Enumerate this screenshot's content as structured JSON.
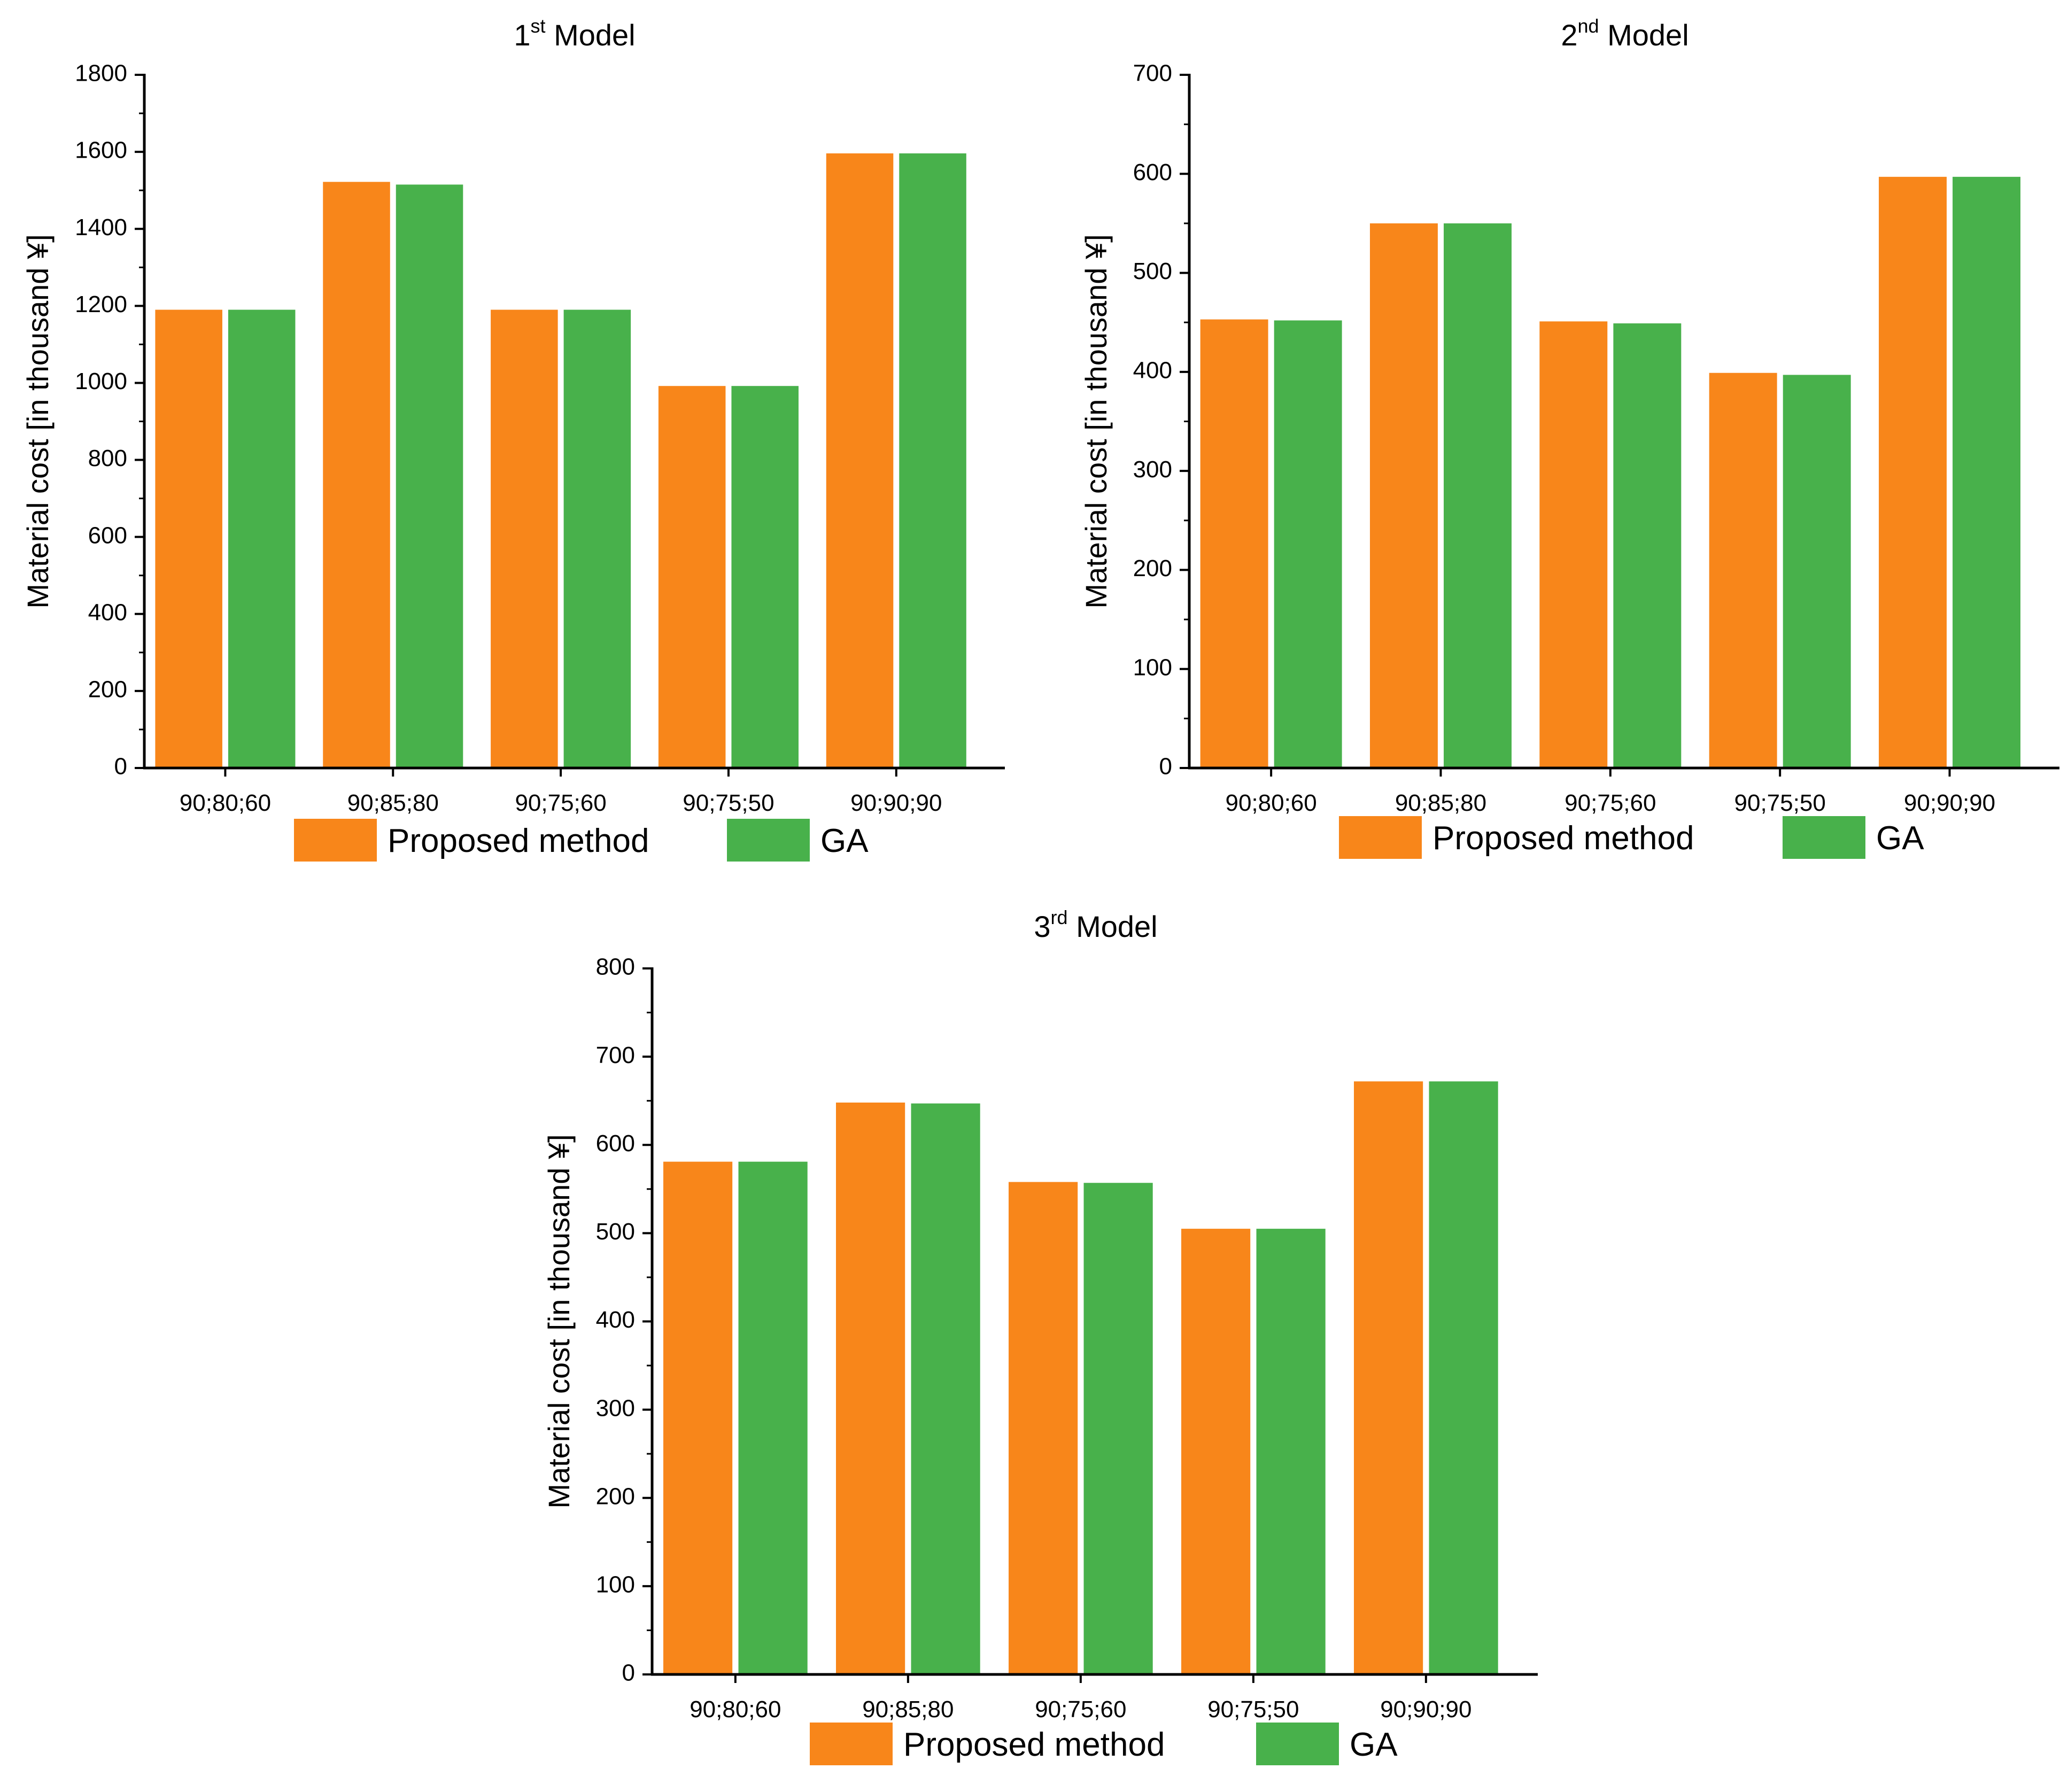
{
  "series_names": [
    "Proposed method",
    "GA"
  ],
  "colors": {
    "proposed": "#F8861A",
    "ga": "#48B14B",
    "axis": "#000000"
  },
  "chart_data": [
    {
      "type": "bar",
      "title_prefix": "1",
      "title_sup": "st",
      "title_suffix": " Model",
      "xlabel": "",
      "ylabel": "Material cost [in thousand ¥]",
      "ylim": [
        0,
        1800
      ],
      "yticks": [
        0,
        200,
        400,
        600,
        800,
        1000,
        1200,
        1400,
        1600,
        1800
      ],
      "categories": [
        "90;80;60",
        "90;85;80",
        "90;75;60",
        "90;75;50",
        "90;90;90"
      ],
      "series": [
        {
          "name": "Proposed method",
          "values": [
            1190,
            1522,
            1190,
            992,
            1596
          ]
        },
        {
          "name": "GA",
          "values": [
            1190,
            1515,
            1190,
            992,
            1596
          ]
        }
      ],
      "legend": "bottom-center"
    },
    {
      "type": "bar",
      "title_prefix": "2",
      "title_sup": "nd",
      "title_suffix": " Model",
      "xlabel": "",
      "ylabel": "Material cost [in thousand ¥]",
      "ylim": [
        0,
        700
      ],
      "yticks": [
        0,
        100,
        200,
        300,
        400,
        500,
        600,
        700
      ],
      "categories": [
        "90;80;60",
        "90;85;80",
        "90;75;60",
        "90;75;50",
        "90;90;90"
      ],
      "series": [
        {
          "name": "Proposed method",
          "values": [
            453,
            550,
            451,
            399,
            597
          ]
        },
        {
          "name": "GA",
          "values": [
            452,
            550,
            449,
            397,
            597
          ]
        }
      ],
      "legend": "bottom-center"
    },
    {
      "type": "bar",
      "title_prefix": "3",
      "title_sup": "rd",
      "title_suffix": " Model",
      "xlabel": "",
      "ylabel": "Material cost [in thousand ¥]",
      "ylim": [
        0,
        800
      ],
      "yticks": [
        0,
        100,
        200,
        300,
        400,
        500,
        600,
        700,
        800
      ],
      "categories": [
        "90;80;60",
        "90;85;80",
        "90;75;60",
        "90;75;50",
        "90;90;90"
      ],
      "series": [
        {
          "name": "Proposed method",
          "values": [
            581,
            648,
            558,
            505,
            672
          ]
        },
        {
          "name": "GA",
          "values": [
            581,
            647,
            557,
            505,
            672
          ]
        }
      ],
      "legend": "bottom-center"
    }
  ]
}
